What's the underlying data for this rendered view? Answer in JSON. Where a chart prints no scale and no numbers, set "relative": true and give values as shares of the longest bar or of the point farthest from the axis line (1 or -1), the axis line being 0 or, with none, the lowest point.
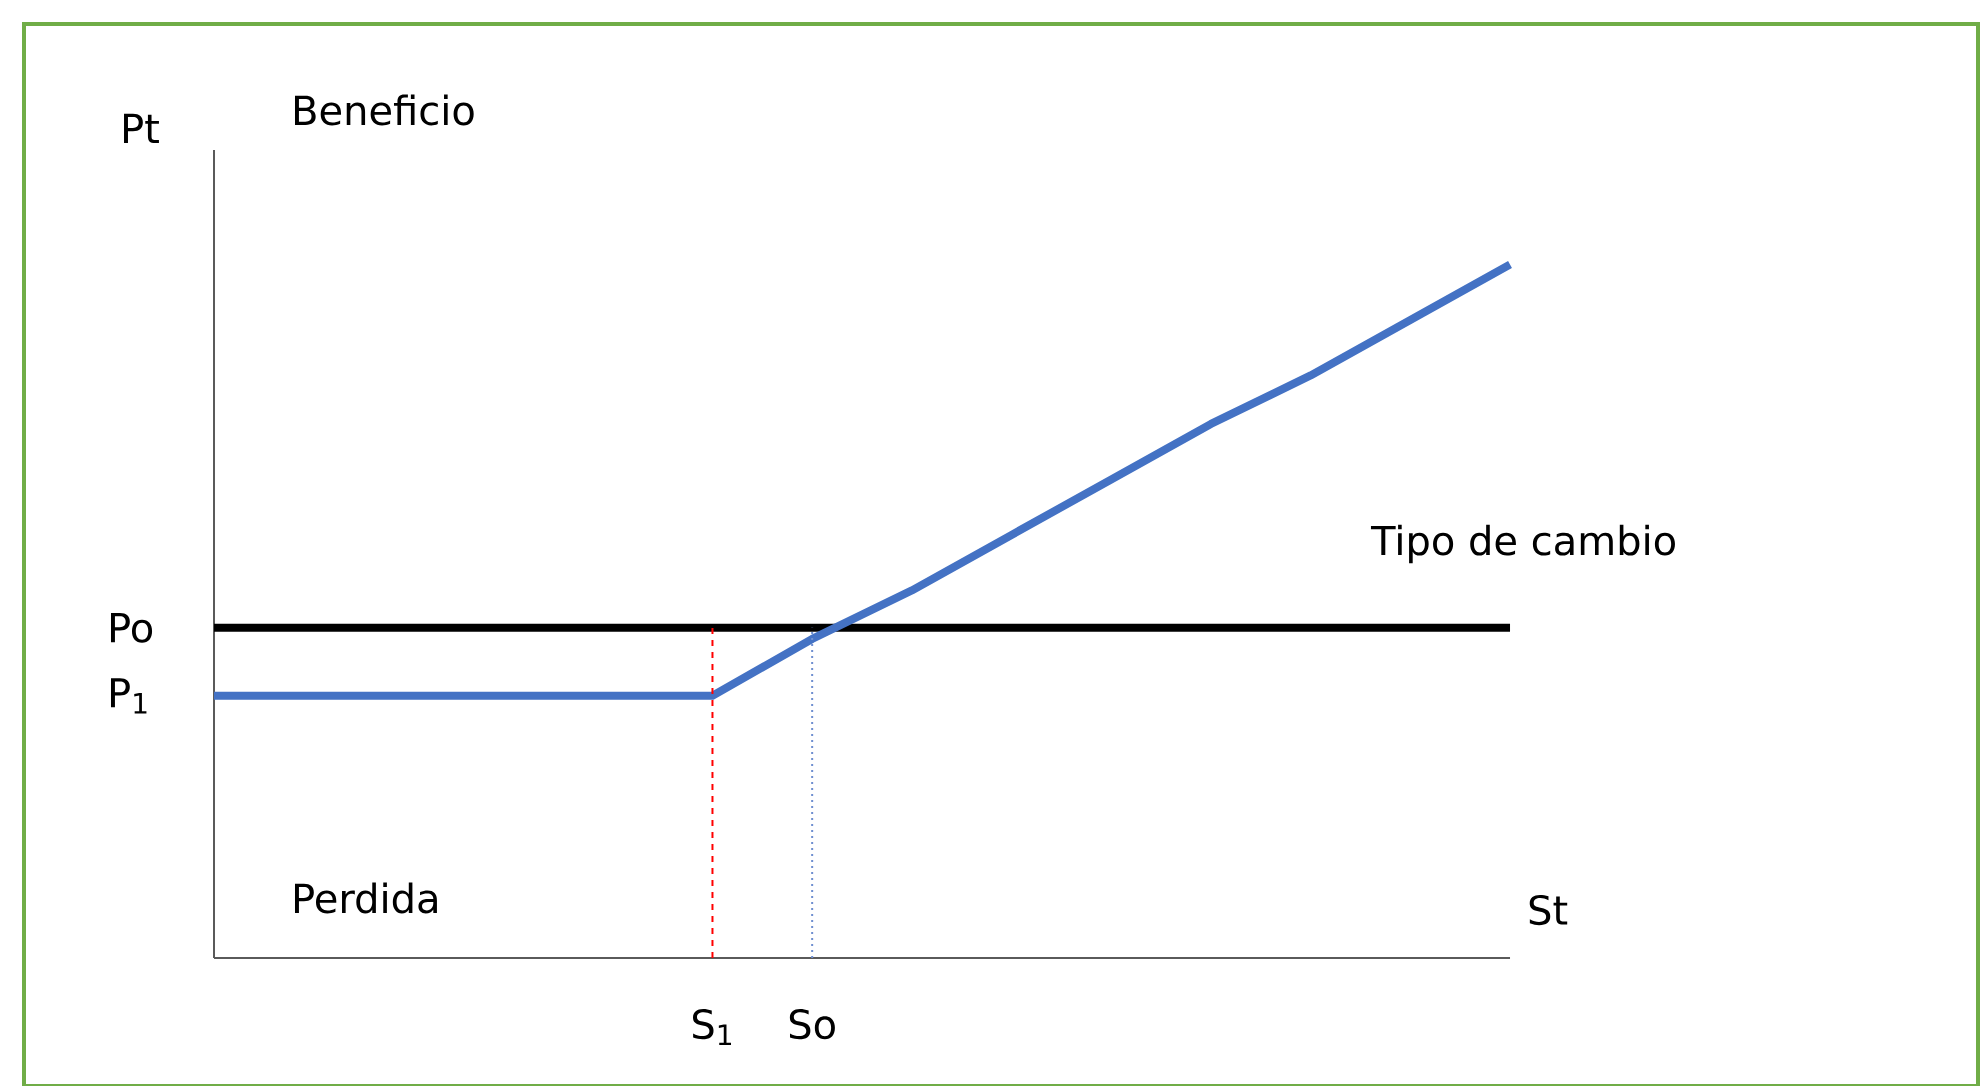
{
  "chart_data": {
    "type": "line",
    "relative": true,
    "xlabel": "St",
    "ylabel": "Pt",
    "categories": [
      null,
      null,
      null,
      null,
      null,
      "S$_{1}$",
      "So",
      null,
      null,
      null,
      null,
      null,
      null,
      null
    ],
    "series": [
      {
        "name": "Po",
        "color": "#000000",
        "values": [
          0.476,
          0.476,
          0.476,
          0.476,
          0.476,
          0.476,
          0.476,
          0.476,
          0.476,
          0.476,
          0.476,
          0.476,
          0.476,
          0.476
        ]
      },
      {
        "name": "P$_{1}$",
        "color": "#4472c4",
        "values": [
          0.378,
          0.378,
          0.378,
          0.378,
          0.378,
          0.378,
          0.46,
          0.53,
          0.61,
          0.69,
          0.77,
          0.84,
          0.92,
          1
        ]
      }
    ],
    "ref_lines": [
      {
        "axis": "x",
        "value": "S$_{1}$",
        "color": "#ff0000",
        "line_style": "dashed"
      },
      {
        "axis": "x",
        "value": "So",
        "color": "#6f8fd0",
        "line_style": "dotted"
      }
    ],
    "annotations": [
      "Beneficio",
      "Tipo de cambio",
      "Perdida"
    ],
    "grid": false,
    "marker": "none",
    "line_style": "solid"
  }
}
